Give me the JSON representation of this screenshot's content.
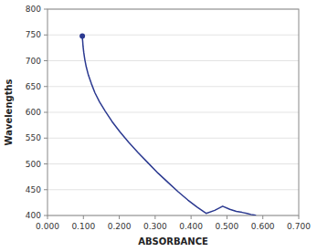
{
  "chart_data": {
    "type": "line",
    "xlabel": "ABSORBANCE",
    "ylabel": "Wavelengths",
    "xlim": [
      0.0,
      0.7
    ],
    "ylim": [
      400,
      800
    ],
    "xticks": [
      {
        "value": 0.0,
        "label": "0.000"
      },
      {
        "value": 0.1,
        "label": "0.100"
      },
      {
        "value": 0.2,
        "label": "0.200"
      },
      {
        "value": 0.3,
        "label": "0.300"
      },
      {
        "value": 0.4,
        "label": "0.400"
      },
      {
        "value": 0.5,
        "label": "0.500"
      },
      {
        "value": 0.6,
        "label": "0.600"
      },
      {
        "value": 0.7,
        "label": "0.700"
      }
    ],
    "yticks": [
      400,
      450,
      500,
      550,
      600,
      650,
      700,
      750,
      800
    ],
    "grid": true,
    "series": [
      {
        "type": "line",
        "color": "#2b3990",
        "x": [
          0.097,
          0.097,
          0.098,
          0.099,
          0.101,
          0.104,
          0.108,
          0.114,
          0.122,
          0.132,
          0.145,
          0.161,
          0.18,
          0.202,
          0.226,
          0.252,
          0.28,
          0.308,
          0.336,
          0.364,
          0.391,
          0.417,
          0.442,
          0.466,
          0.488,
          0.508,
          0.526,
          0.542,
          0.556,
          0.567,
          0.576,
          0.581
        ],
        "values": [
          750,
          745,
          738,
          728,
          716,
          702,
          688,
          672,
          656,
          638,
          620,
          602,
          582,
          562,
          542,
          522,
          502,
          482,
          464,
          446,
          430,
          416,
          404,
          410,
          418,
          412,
          408,
          406,
          404,
          402,
          401,
          400
        ]
      },
      {
        "type": "scatter",
        "color": "#2b3990",
        "marker": "circle",
        "x": [
          0.097
        ],
        "values": [
          748
        ]
      }
    ]
  }
}
